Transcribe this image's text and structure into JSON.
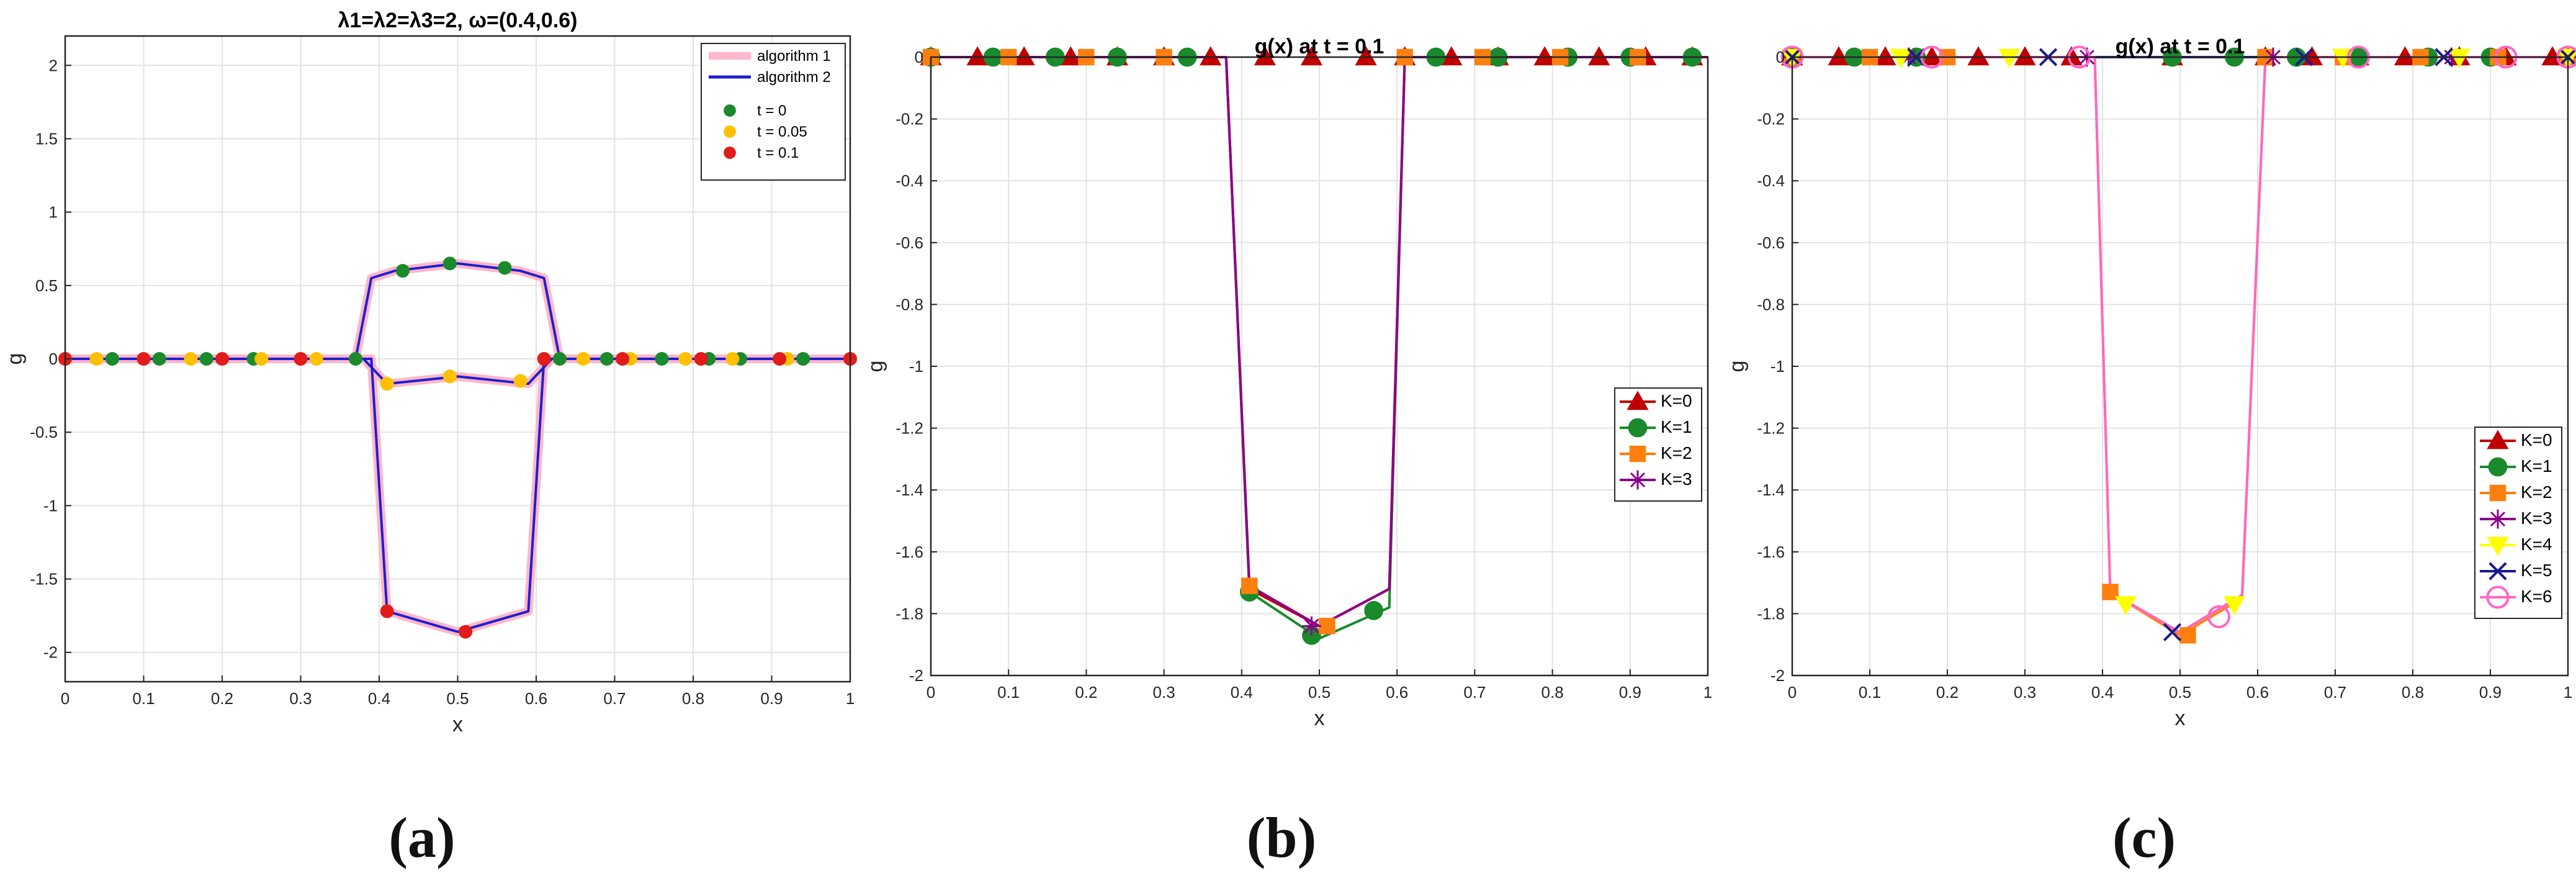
{
  "captions": [
    "(a)",
    "(b)",
    "(c)"
  ],
  "chart_data": [
    {
      "type": "line",
      "title": "λ1=λ2=λ3=2, ω=(0.4,0.6)",
      "xlabel": "x",
      "ylabel": "g",
      "xlim": [
        0,
        1
      ],
      "ylim": [
        -2.2,
        2.2
      ],
      "xticks": [
        0,
        0.1,
        0.2,
        0.3,
        0.4,
        0.5,
        0.6,
        0.7,
        0.8,
        0.9,
        1
      ],
      "yticks": [
        -2,
        -1.5,
        -1,
        -0.5,
        0,
        0.5,
        1,
        1.5,
        2
      ],
      "grid": true,
      "legend_position": "top-right",
      "lines": [
        {
          "name": "algorithm 1",
          "color": "#ffb6c8",
          "width": 14
        },
        {
          "name": "algorithm 2",
          "color": "#1f1fd0",
          "width": 4
        }
      ],
      "markers": [
        {
          "name": "t = 0",
          "color": "#1a8a2c",
          "shape": "dot"
        },
        {
          "name": "t = 0.05",
          "color": "#ffc000",
          "shape": "dot"
        },
        {
          "name": "t = 0.1",
          "color": "#e21b1b",
          "shape": "dot"
        }
      ],
      "series": [
        {
          "key": "t0",
          "x": [
            0,
            0.37,
            0.39,
            0.42,
            0.5,
            0.58,
            0.61,
            0.63,
            1
          ],
          "y": [
            0,
            0,
            0.55,
            0.6,
            0.65,
            0.6,
            0.55,
            0,
            0
          ],
          "marker_x": [
            0,
            0.06,
            0.12,
            0.18,
            0.24,
            0.37,
            0.43,
            0.49,
            0.56,
            0.63,
            0.69,
            0.76,
            0.82,
            0.86,
            0.94,
            1
          ],
          "marker_y": [
            0,
            0,
            0,
            0,
            0,
            0,
            0.6,
            0.65,
            0.62,
            0,
            0,
            0,
            0,
            0,
            0,
            0
          ]
        },
        {
          "key": "t005",
          "x": [
            0,
            0.38,
            0.41,
            0.5,
            0.59,
            0.62,
            1
          ],
          "y": [
            0,
            0,
            -0.17,
            -0.12,
            -0.17,
            0,
            0
          ],
          "marker_x": [
            0,
            0.04,
            0.1,
            0.16,
            0.25,
            0.32,
            0.41,
            0.49,
            0.58,
            0.66,
            0.72,
            0.79,
            0.85,
            0.92,
            1
          ],
          "marker_y": [
            0,
            0,
            0,
            0,
            0,
            0,
            -0.17,
            -0.12,
            -0.15,
            0,
            0,
            0,
            0,
            0,
            0
          ]
        },
        {
          "key": "t01",
          "x": [
            0,
            0.39,
            0.41,
            0.5,
            0.59,
            0.61,
            1
          ],
          "y": [
            0,
            0,
            -1.72,
            -1.86,
            -1.72,
            0,
            0
          ],
          "marker_x": [
            0,
            0.1,
            0.2,
            0.3,
            0.41,
            0.51,
            0.61,
            0.71,
            0.81,
            0.91,
            1
          ],
          "marker_y": [
            0,
            0,
            0,
            0,
            -1.72,
            -1.86,
            0,
            0,
            0,
            0,
            0
          ]
        }
      ]
    },
    {
      "type": "line",
      "title": "g(x) at t = 0.1",
      "xlabel": "x",
      "ylabel": "g",
      "xlim": [
        0,
        1
      ],
      "ylim": [
        -2,
        0
      ],
      "xticks": [
        0,
        0.1,
        0.2,
        0.3,
        0.4,
        0.5,
        0.6,
        0.7,
        0.8,
        0.9,
        1
      ],
      "yticks": [
        0,
        -0.2,
        -0.4,
        -0.6,
        -0.8,
        -1,
        -1.2,
        -1.4,
        -1.6,
        -1.8,
        -2
      ],
      "grid": true,
      "legend_position": "right",
      "series": [
        {
          "name": "K=0",
          "color": "#c00000",
          "marker": "triangle",
          "x": [
            0,
            0.38,
            0.41,
            0.5,
            0.59,
            0.61,
            1
          ],
          "y": [
            0,
            0,
            -1.72,
            -1.84,
            -1.72,
            0,
            0
          ],
          "marker_x": [
            0,
            0.06,
            0.12,
            0.18,
            0.24,
            0.3,
            0.36,
            0.43,
            0.49,
            0.56,
            0.61,
            0.67,
            0.73,
            0.79,
            0.86,
            0.92,
            0.98
          ],
          "marker_y": [
            0,
            0,
            0,
            0,
            0,
            0,
            0,
            0,
            0,
            0,
            0,
            0,
            0,
            0,
            0,
            0,
            0
          ]
        },
        {
          "name": "K=1",
          "color": "#1a8a2c",
          "marker": "circle",
          "x": [
            0,
            0.38,
            0.41,
            0.5,
            0.59,
            0.61,
            1
          ],
          "y": [
            0,
            0,
            -1.73,
            -1.88,
            -1.78,
            0,
            0
          ],
          "marker_x": [
            0,
            0.08,
            0.16,
            0.24,
            0.33,
            0.41,
            0.49,
            0.57,
            0.65,
            0.73,
            0.82,
            0.9,
            0.98
          ],
          "marker_y": [
            0,
            0,
            0,
            0,
            0,
            -1.73,
            -1.87,
            -1.79,
            0,
            0,
            0,
            0,
            0
          ]
        },
        {
          "name": "K=2",
          "color": "#ff7f0e",
          "marker": "square",
          "x": [
            0,
            0.38,
            0.41,
            0.5,
            0.59,
            0.61,
            1
          ],
          "y": [
            0,
            0,
            -1.71,
            -1.84,
            -1.72,
            0,
            0
          ],
          "marker_x": [
            0,
            0.1,
            0.2,
            0.3,
            0.41,
            0.51,
            0.61,
            0.71,
            0.81,
            0.91
          ],
          "marker_y": [
            0,
            0,
            0,
            0,
            -1.71,
            -1.84,
            0,
            0,
            0,
            0
          ]
        },
        {
          "name": "K=3",
          "color": "#8b008b",
          "marker": "star",
          "x": [
            0,
            0.38,
            0.41,
            0.5,
            0.59,
            0.61,
            1
          ],
          "y": [
            0,
            0,
            -1.71,
            -1.84,
            -1.72,
            0,
            0
          ],
          "marker_x": [
            0.49
          ],
          "marker_y": [
            -1.84
          ]
        }
      ]
    },
    {
      "type": "line",
      "title": "g(x) at t = 0.1",
      "xlabel": "x",
      "ylabel": "g",
      "xlim": [
        0,
        1
      ],
      "ylim": [
        -2,
        0
      ],
      "xticks": [
        0,
        0.1,
        0.2,
        0.3,
        0.4,
        0.5,
        0.6,
        0.7,
        0.8,
        0.9,
        1
      ],
      "yticks": [
        0,
        -0.2,
        -0.4,
        -0.6,
        -0.8,
        -1,
        -1.2,
        -1.4,
        -1.6,
        -1.8,
        -2
      ],
      "grid": true,
      "legend_position": "right",
      "series": [
        {
          "name": "K=0",
          "color": "#c00000",
          "marker": "triangle",
          "x": [
            0,
            1
          ],
          "y": [
            0,
            0
          ],
          "marker_x": [
            0,
            0.06,
            0.12,
            0.18,
            0.24,
            0.3,
            0.36,
            0.49,
            0.61,
            0.67,
            0.73,
            0.79,
            0.86,
            0.92,
            0.98
          ],
          "marker_y": [
            0,
            0,
            0,
            0,
            0,
            0,
            0,
            0,
            0,
            0,
            0,
            0,
            0,
            0,
            0
          ]
        },
        {
          "name": "K=1",
          "color": "#1a8a2c",
          "marker": "circle",
          "x": [
            0,
            1
          ],
          "y": [
            0,
            0
          ],
          "marker_x": [
            0,
            0.08,
            0.16,
            0.49,
            0.57,
            0.65,
            0.73,
            0.82,
            0.9
          ],
          "marker_y": [
            0,
            0,
            0,
            0,
            0,
            0,
            0,
            0,
            0
          ]
        },
        {
          "name": "K=2",
          "color": "#ff7f0e",
          "marker": "square",
          "x": [
            0,
            0.39,
            0.41,
            0.5,
            0.58,
            0.61,
            1
          ],
          "y": [
            0,
            0,
            -1.73,
            -1.87,
            -1.75,
            0,
            0
          ],
          "marker_x": [
            0,
            0.1,
            0.2,
            0.41,
            0.51,
            0.61,
            0.71,
            0.81,
            0.91,
            1
          ],
          "marker_y": [
            0,
            0,
            0,
            -1.73,
            -1.87,
            0,
            0,
            0,
            0,
            0
          ]
        },
        {
          "name": "K=3",
          "color": "#8b008b",
          "marker": "star",
          "x": [
            0,
            1
          ],
          "y": [
            0,
            0
          ],
          "marker_x": [
            0,
            0.15,
            0.38,
            0.62,
            0.85,
            1
          ],
          "marker_y": [
            0,
            0,
            0,
            0,
            0,
            0
          ]
        },
        {
          "name": "K=4",
          "color": "#ffff00",
          "marker": "triangle-down",
          "x": [
            0,
            0.39,
            0.41,
            0.5,
            0.58,
            0.61,
            1
          ],
          "y": [
            0,
            0,
            -1.73,
            -1.86,
            -1.74,
            0,
            0
          ],
          "marker_x": [
            0,
            0.14,
            0.28,
            0.43,
            0.57,
            0.71,
            0.86,
            1
          ],
          "marker_y": [
            0,
            0,
            0,
            -1.77,
            -1.77,
            0,
            0,
            0
          ]
        },
        {
          "name": "K=5",
          "color": "#1a1a8c",
          "marker": "x",
          "x": [
            0,
            1
          ],
          "y": [
            0,
            0
          ],
          "marker_x": [
            0,
            0.16,
            0.33,
            0.49,
            0.66,
            0.84,
            1
          ],
          "marker_y": [
            0,
            0,
            0,
            -1.86,
            0,
            0,
            0
          ]
        },
        {
          "name": "K=6",
          "color": "#ff66c4",
          "marker": "open-circle",
          "x": [
            0,
            0.39,
            0.41,
            0.5,
            0.58,
            0.61,
            1
          ],
          "y": [
            0,
            0,
            -1.73,
            -1.86,
            -1.74,
            0,
            0
          ],
          "marker_x": [
            0,
            0.18,
            0.37,
            0.55,
            0.73,
            0.92,
            1
          ],
          "marker_y": [
            0,
            0,
            0,
            -1.81,
            0,
            0,
            0
          ]
        }
      ]
    }
  ]
}
